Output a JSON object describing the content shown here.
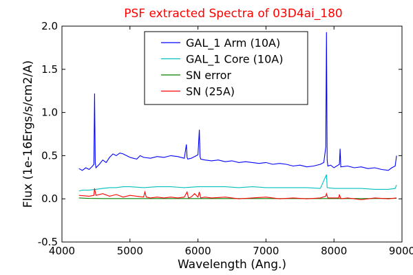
{
  "chart_data": {
    "type": "line",
    "title": "PSF extracted Spectra of 03D4ai_180",
    "title_color": "#ff0000",
    "xlabel": "Wavelength (Ang.)",
    "ylabel": "Flux (1e-16Ergs/s/cm2/A)",
    "xlim": [
      4000,
      9000
    ],
    "ylim": [
      -0.5,
      2.0
    ],
    "xticks": [
      4000,
      5000,
      6000,
      7000,
      8000,
      9000
    ],
    "xtick_labels": [
      "4000",
      "5000",
      "6000",
      "7000",
      "8000",
      "9000"
    ],
    "yticks": [
      -0.5,
      0.0,
      0.5,
      1.0,
      1.5,
      2.0
    ],
    "ytick_labels": [
      "-0.5",
      "0.0",
      "0.5",
      "1.0",
      "1.5",
      "2.0"
    ],
    "grid": false,
    "legend_position": "top-center",
    "series": [
      {
        "name": "GAL_1 Arm (10A)",
        "color": "#0000ff",
        "x": [
          4250,
          4300,
          4350,
          4400,
          4450,
          4470,
          4480,
          4490,
          4500,
          4550,
          4600,
          4650,
          4700,
          4750,
          4800,
          4850,
          4900,
          4950,
          5000,
          5050,
          5100,
          5150,
          5200,
          5300,
          5400,
          5500,
          5600,
          5700,
          5800,
          5830,
          5840,
          5850,
          5900,
          5950,
          6000,
          6020,
          6030,
          6040,
          6100,
          6200,
          6300,
          6400,
          6500,
          6600,
          6700,
          6800,
          6900,
          7000,
          7100,
          7200,
          7300,
          7400,
          7500,
          7600,
          7700,
          7800,
          7850,
          7880,
          7890,
          7900,
          7910,
          7950,
          8000,
          8080,
          8090,
          8100,
          8200,
          8300,
          8400,
          8500,
          8600,
          8700,
          8800,
          8850,
          8900,
          8920
        ],
        "y": [
          0.35,
          0.33,
          0.36,
          0.34,
          0.38,
          0.4,
          1.22,
          0.42,
          0.36,
          0.4,
          0.45,
          0.42,
          0.48,
          0.52,
          0.5,
          0.53,
          0.52,
          0.5,
          0.48,
          0.47,
          0.46,
          0.5,
          0.48,
          0.47,
          0.49,
          0.48,
          0.5,
          0.49,
          0.47,
          0.63,
          0.48,
          0.46,
          0.47,
          0.49,
          0.51,
          0.8,
          0.49,
          0.46,
          0.45,
          0.44,
          0.45,
          0.43,
          0.44,
          0.42,
          0.43,
          0.42,
          0.41,
          0.42,
          0.4,
          0.41,
          0.4,
          0.38,
          0.39,
          0.37,
          0.38,
          0.4,
          0.42,
          0.6,
          1.93,
          0.45,
          0.38,
          0.39,
          0.36,
          0.4,
          0.58,
          0.37,
          0.38,
          0.36,
          0.37,
          0.35,
          0.36,
          0.34,
          0.33,
          0.36,
          0.38,
          0.5
        ]
      },
      {
        "name": "GAL_1 Core (10A)",
        "color": "#00bfbf",
        "x": [
          4250,
          4300,
          4400,
          4500,
          4600,
          4700,
          4800,
          4900,
          5000,
          5200,
          5400,
          5600,
          5800,
          6000,
          6200,
          6400,
          6600,
          6800,
          7000,
          7200,
          7400,
          7600,
          7800,
          7890,
          7900,
          8000,
          8200,
          8400,
          8600,
          8800,
          8900,
          8920
        ],
        "y": [
          0.09,
          0.1,
          0.1,
          0.11,
          0.12,
          0.13,
          0.13,
          0.14,
          0.14,
          0.13,
          0.14,
          0.14,
          0.13,
          0.14,
          0.14,
          0.14,
          0.13,
          0.14,
          0.13,
          0.13,
          0.13,
          0.13,
          0.12,
          0.28,
          0.13,
          0.12,
          0.12,
          0.12,
          0.11,
          0.11,
          0.12,
          0.16
        ]
      },
      {
        "name": "SN error",
        "color": "#008000",
        "x": [
          4250,
          4400,
          4600,
          5000,
          5500,
          6000,
          6500,
          7000,
          7500,
          8000,
          8500,
          8920
        ],
        "y": [
          0.01,
          0.005,
          0.003,
          0.003,
          0.003,
          0.003,
          0.003,
          0.003,
          0.003,
          0.003,
          0.003,
          0.005
        ]
      },
      {
        "name": "SN (25A)",
        "color": "#ff0000",
        "x": [
          4250,
          4400,
          4470,
          4480,
          4500,
          4600,
          4700,
          4800,
          4900,
          5000,
          5100,
          5200,
          5220,
          5240,
          5300,
          5400,
          5500,
          5600,
          5700,
          5800,
          5840,
          5860,
          5900,
          5950,
          6000,
          6020,
          6040,
          6100,
          6200,
          6400,
          6600,
          6800,
          7000,
          7200,
          7400,
          7600,
          7800,
          7880,
          7890,
          7910,
          8000,
          8070,
          8080,
          8100,
          8200,
          8400,
          8600,
          8800,
          8920
        ],
        "y": [
          0.04,
          0.03,
          0.04,
          0.12,
          0.04,
          0.06,
          0.03,
          0.05,
          0.02,
          0.04,
          0.03,
          0.02,
          0.08,
          0.02,
          0.01,
          0.02,
          0.01,
          0.02,
          0.01,
          0.02,
          0.08,
          0.01,
          0.02,
          0.06,
          0.02,
          0.08,
          0.01,
          0.02,
          0.01,
          0.02,
          0.0,
          0.01,
          0.02,
          0.0,
          0.01,
          0.0,
          0.01,
          0.03,
          0.06,
          0.01,
          0.01,
          0.01,
          0.05,
          0.0,
          0.01,
          -0.01,
          0.01,
          0.0,
          0.01
        ]
      }
    ]
  }
}
